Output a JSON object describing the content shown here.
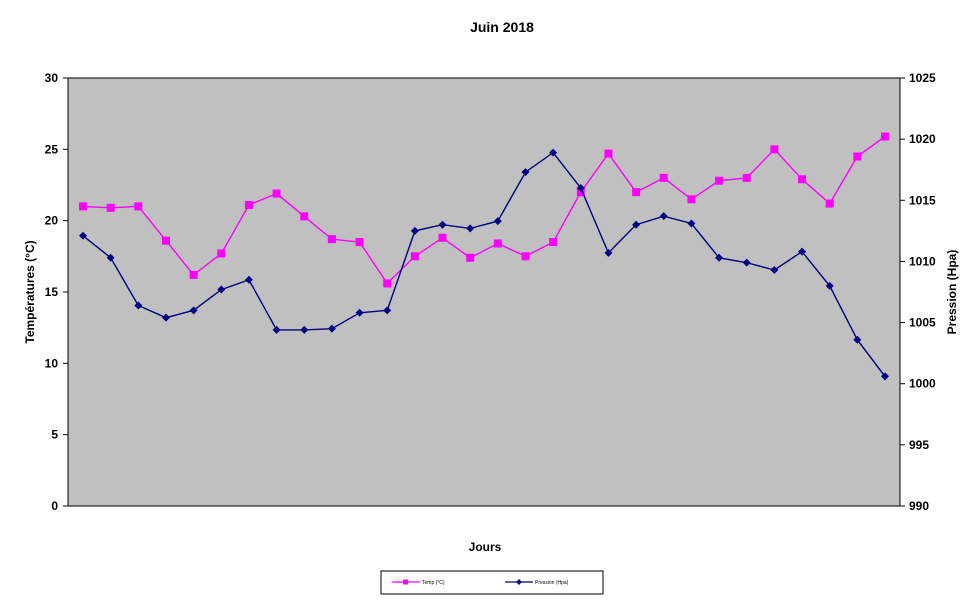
{
  "chart_data": {
    "type": "line",
    "title": "Juin 2018",
    "xlabel": "Jours",
    "ylabel_left": "Températures  (°C)",
    "ylabel_right": "Pression (Hpa)",
    "ylim_left": [
      0,
      30
    ],
    "ylim_right": [
      990,
      1025
    ],
    "yticks_left": [
      "0",
      "5",
      "10",
      "15",
      "20",
      "25",
      "30"
    ],
    "yticks_right": [
      "990",
      "995",
      "1000",
      "1005",
      "1010",
      "1015",
      "1020",
      "1025"
    ],
    "grid": false,
    "plot_background": "#c0c0c0",
    "legend_position": "bottom",
    "x": [
      1,
      2,
      3,
      4,
      5,
      6,
      7,
      8,
      9,
      10,
      11,
      12,
      13,
      14,
      15,
      16,
      17,
      18,
      19,
      20,
      21,
      22,
      23,
      24,
      25,
      26,
      27,
      28,
      29,
      30
    ],
    "series": [
      {
        "name": "Temp (°C)",
        "axis": "left",
        "color": "#ff00ff",
        "marker": "square",
        "values": [
          21.0,
          20.9,
          21.0,
          18.6,
          16.2,
          17.7,
          21.1,
          21.9,
          20.3,
          18.7,
          18.5,
          15.6,
          17.5,
          18.8,
          17.4,
          18.4,
          17.5,
          18.5,
          22.0,
          24.7,
          22.0,
          23.0,
          21.5,
          22.8,
          23.0,
          25.0,
          22.9,
          21.2,
          24.5,
          25.9
        ]
      },
      {
        "name": "Pression (Hpa)",
        "axis": "right",
        "color": "#000080",
        "marker": "diamond",
        "values": [
          1012.1,
          1010.3,
          1006.4,
          1005.4,
          1006.0,
          1007.7,
          1008.5,
          1004.4,
          1004.4,
          1004.5,
          1005.8,
          1006.0,
          1012.5,
          1013.0,
          1012.7,
          1013.3,
          1017.3,
          1018.9,
          1016.0,
          1010.7,
          1013.0,
          1013.7,
          1013.1,
          1010.3,
          1009.9,
          1009.3,
          1010.8,
          1008.0,
          1003.6,
          1000.6
        ]
      }
    ]
  }
}
